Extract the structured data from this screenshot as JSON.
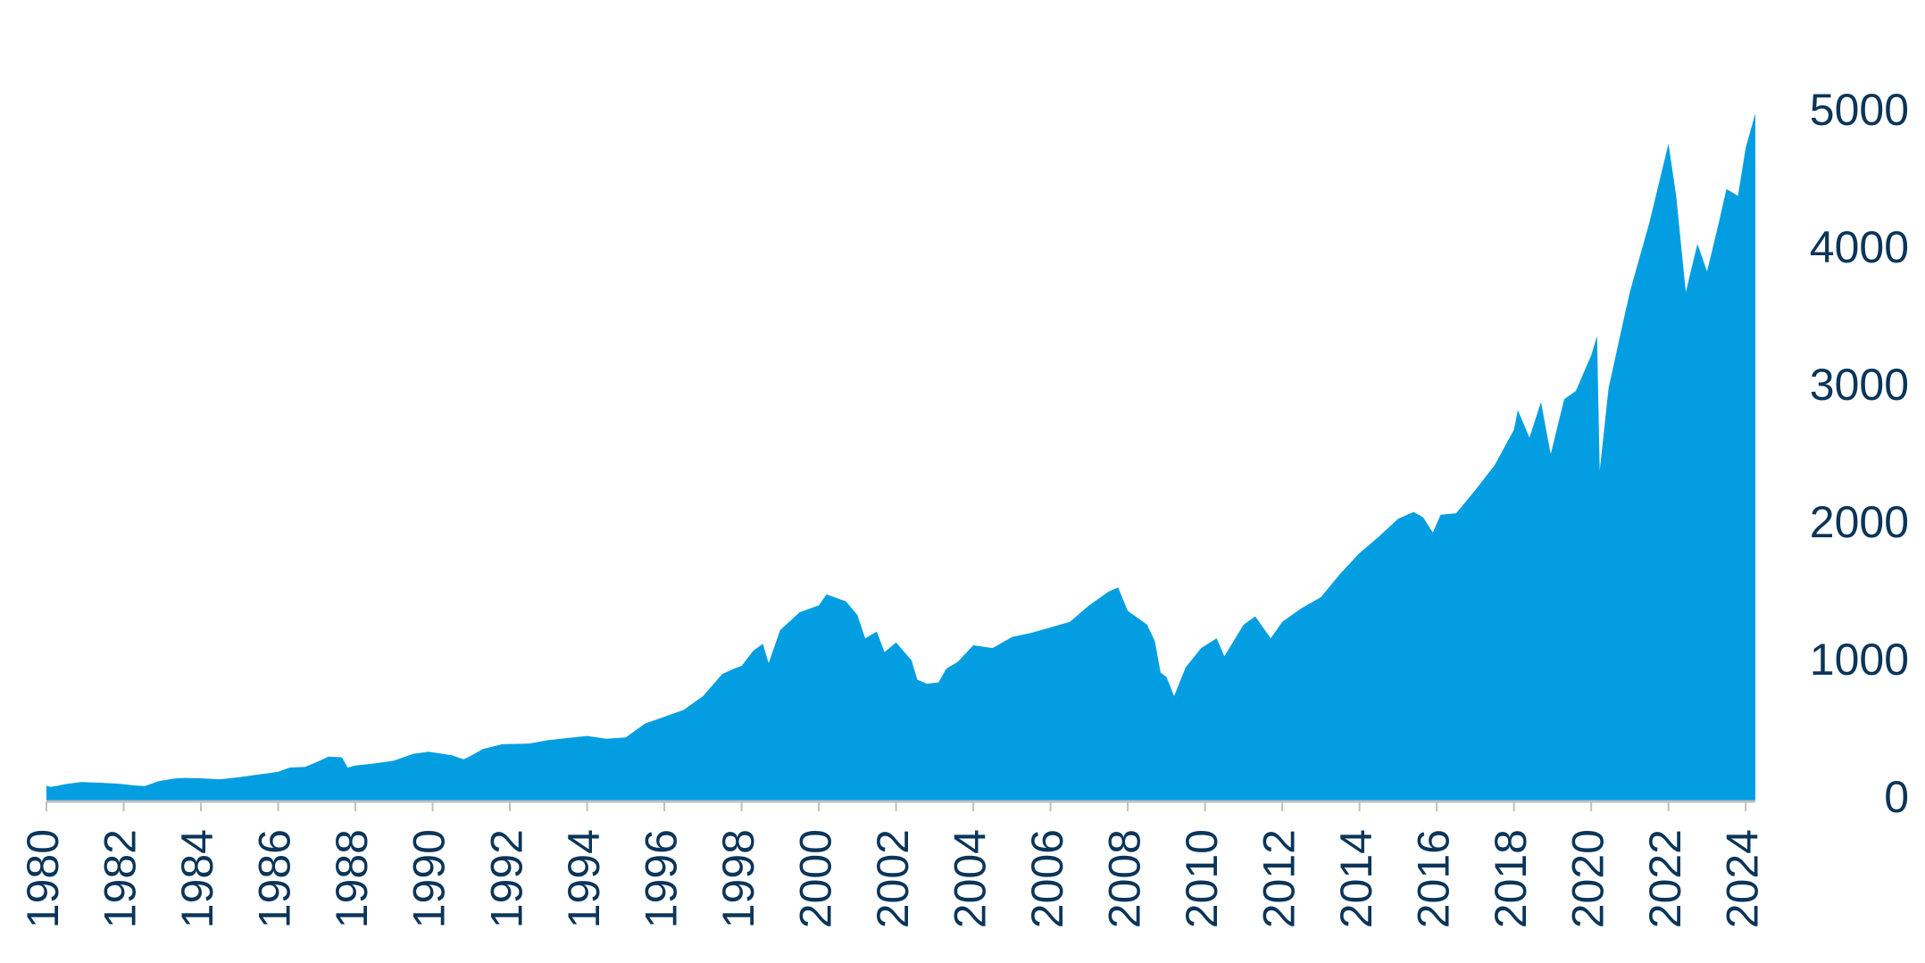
{
  "colors": {
    "area": "#039ee1",
    "text": "#0b3559",
    "axis": "#bfbfbf"
  },
  "chart_data": {
    "type": "area",
    "title": "",
    "xlabel": "",
    "ylabel": "",
    "xlim": [
      1980,
      2024.25
    ],
    "ylim": [
      0,
      5000
    ],
    "grid": false,
    "legend": "none",
    "y_axis_position": "right",
    "x_tick_rotation": -90,
    "x_ticks": [
      1980,
      1982,
      1984,
      1986,
      1988,
      1990,
      1992,
      1994,
      1996,
      1998,
      2000,
      2002,
      2004,
      2006,
      2008,
      2010,
      2012,
      2014,
      2016,
      2018,
      2020,
      2022,
      2024
    ],
    "x_tick_labels": [
      "1980",
      "1982",
      "1984",
      "1986",
      "1988",
      "1990",
      "1992",
      "1994",
      "1996",
      "1998",
      "2000",
      "2002",
      "2004",
      "2006",
      "2008",
      "2010",
      "2012",
      "2014",
      "2016",
      "2018",
      "2020",
      "2022",
      "2024"
    ],
    "y_ticks": [
      0,
      1000,
      2000,
      3000,
      4000,
      5000
    ],
    "y_tick_labels": [
      "0",
      "1000",
      "2000",
      "3000",
      "4000",
      "5000"
    ],
    "series": [
      {
        "x": [
          1980.0,
          1980.1,
          1980.25,
          1980.5,
          1980.9,
          1981.4,
          1981.9,
          1982.3,
          1982.55,
          1982.9,
          1983.3,
          1983.6,
          1984.0,
          1984.5,
          1985.0,
          1985.5,
          1986.0,
          1986.3,
          1986.7,
          1987.0,
          1987.3,
          1987.65,
          1987.8,
          1988.0,
          1988.5,
          1989.0,
          1989.5,
          1989.9,
          1990.5,
          1990.8,
          1990.95,
          1991.3,
          1991.8,
          1992.5,
          1993.0,
          1993.5,
          1994.0,
          1994.5,
          1995.0,
          1995.5,
          1996.0,
          1996.5,
          1997.0,
          1997.5,
          1997.8,
          1998.0,
          1998.3,
          1998.55,
          1998.7,
          1999.0,
          1999.5,
          2000.0,
          2000.2,
          2000.7,
          2001.0,
          2001.2,
          2001.5,
          2001.7,
          2002.0,
          2002.4,
          2002.55,
          2002.8,
          2003.1,
          2003.3,
          2003.6,
          2004.0,
          2004.5,
          2005.0,
          2005.5,
          2006.0,
          2006.5,
          2007.0,
          2007.5,
          2007.75,
          2008.0,
          2008.5,
          2008.7,
          2008.85,
          2009.0,
          2009.2,
          2009.5,
          2009.9,
          2010.3,
          2010.5,
          2011.0,
          2011.3,
          2011.7,
          2012.0,
          2012.5,
          2013.0,
          2013.5,
          2014.0,
          2014.5,
          2015.0,
          2015.4,
          2015.65,
          2015.9,
          2016.1,
          2016.5,
          2017.0,
          2017.5,
          2018.0,
          2018.1,
          2018.4,
          2018.7,
          2018.95,
          2019.3,
          2019.6,
          2020.0,
          2020.15,
          2020.22,
          2020.45,
          2020.8,
          2021.0,
          2021.5,
          2022.0,
          2022.2,
          2022.45,
          2022.75,
          2023.0,
          2023.3,
          2023.5,
          2023.8,
          2024.0,
          2024.25
        ],
        "y": [
          108,
          100,
          105,
          120,
          135,
          130,
          122,
          110,
          105,
          140,
          160,
          165,
          162,
          155,
          170,
          190,
          210,
          240,
          245,
          280,
          320,
          315,
          240,
          255,
          270,
          290,
          340,
          355,
          330,
          300,
          320,
          375,
          410,
          415,
          440,
          455,
          470,
          450,
          460,
          560,
          610,
          660,
          760,
          920,
          960,
          980,
          1090,
          1140,
          1000,
          1240,
          1370,
          1420,
          1500,
          1450,
          1350,
          1180,
          1230,
          1080,
          1150,
          1020,
          880,
          850,
          860,
          960,
          1010,
          1130,
          1110,
          1190,
          1220,
          1260,
          1300,
          1420,
          1520,
          1550,
          1380,
          1280,
          1160,
          930,
          900,
          760,
          970,
          1110,
          1180,
          1050,
          1280,
          1340,
          1180,
          1300,
          1400,
          1480,
          1650,
          1800,
          1920,
          2050,
          2100,
          2060,
          1950,
          2080,
          2090,
          2260,
          2440,
          2700,
          2840,
          2640,
          2900,
          2520,
          2920,
          2980,
          3240,
          3380,
          2400,
          3000,
          3450,
          3700,
          4200,
          4780,
          4400,
          3700,
          4050,
          3850,
          4200,
          4450,
          4400,
          4750,
          5000
        ]
      }
    ]
  }
}
